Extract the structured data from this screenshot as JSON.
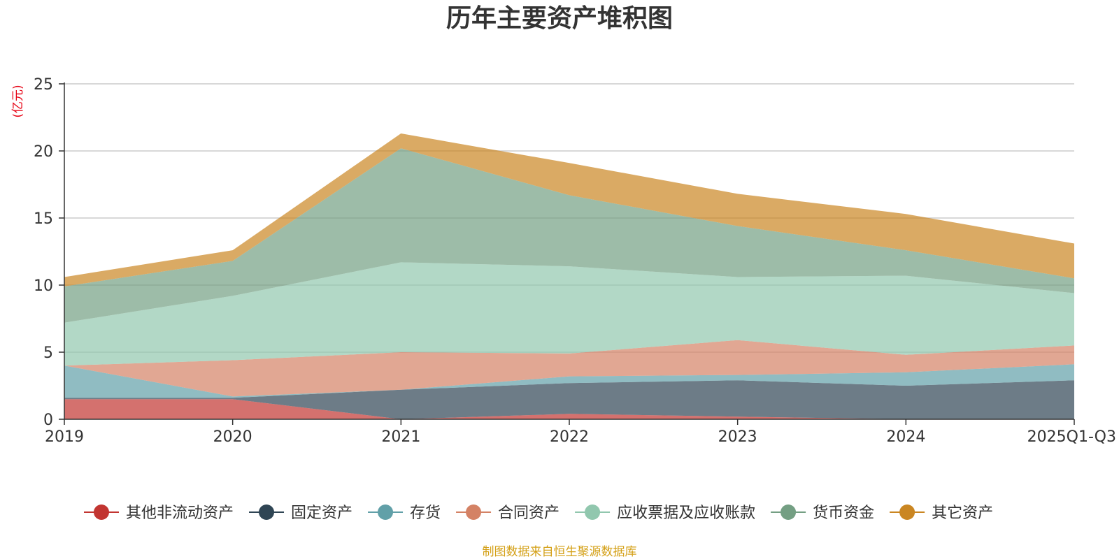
{
  "chart_data": {
    "type": "area",
    "stacked": true,
    "title": "历年主要资产堆积图",
    "ylabel": "(亿元)",
    "xlabel": "",
    "categories": [
      "2019",
      "2020",
      "2021",
      "2022",
      "2023",
      "2024",
      "2025Q1-Q3"
    ],
    "ylim": [
      0,
      25
    ],
    "yticks": [
      0,
      5,
      10,
      15,
      20,
      25
    ],
    "grid": true,
    "legend_position": "bottom",
    "series": [
      {
        "name": "其他非流动资产",
        "color": "#c23531",
        "values": [
          1.5,
          1.5,
          0.0,
          0.4,
          0.2,
          0.0,
          0.0
        ]
      },
      {
        "name": "固定资产",
        "color": "#2f4554",
        "values": [
          0.1,
          0.1,
          2.2,
          2.3,
          2.7,
          2.5,
          2.9
        ]
      },
      {
        "name": "存货",
        "color": "#61a0a8",
        "values": [
          2.4,
          0.1,
          0.0,
          0.5,
          0.4,
          1.0,
          1.2
        ]
      },
      {
        "name": "合同资产",
        "color": "#d48265",
        "values": [
          0.0,
          2.7,
          2.8,
          1.7,
          2.6,
          1.3,
          1.4
        ]
      },
      {
        "name": "应收票据及应收账款",
        "color": "#91c7ae",
        "values": [
          3.2,
          4.8,
          6.7,
          6.5,
          4.7,
          5.9,
          3.9
        ]
      },
      {
        "name": "货币资金",
        "color": "#749f83",
        "values": [
          2.7,
          2.6,
          8.5,
          5.3,
          3.8,
          1.9,
          1.1
        ]
      },
      {
        "name": "其它资产",
        "color": "#ca8622",
        "values": [
          0.7,
          0.8,
          1.1,
          2.4,
          2.4,
          2.7,
          2.6
        ]
      }
    ]
  },
  "footer": {
    "source": "制图数据来自恒生聚源数据库"
  }
}
